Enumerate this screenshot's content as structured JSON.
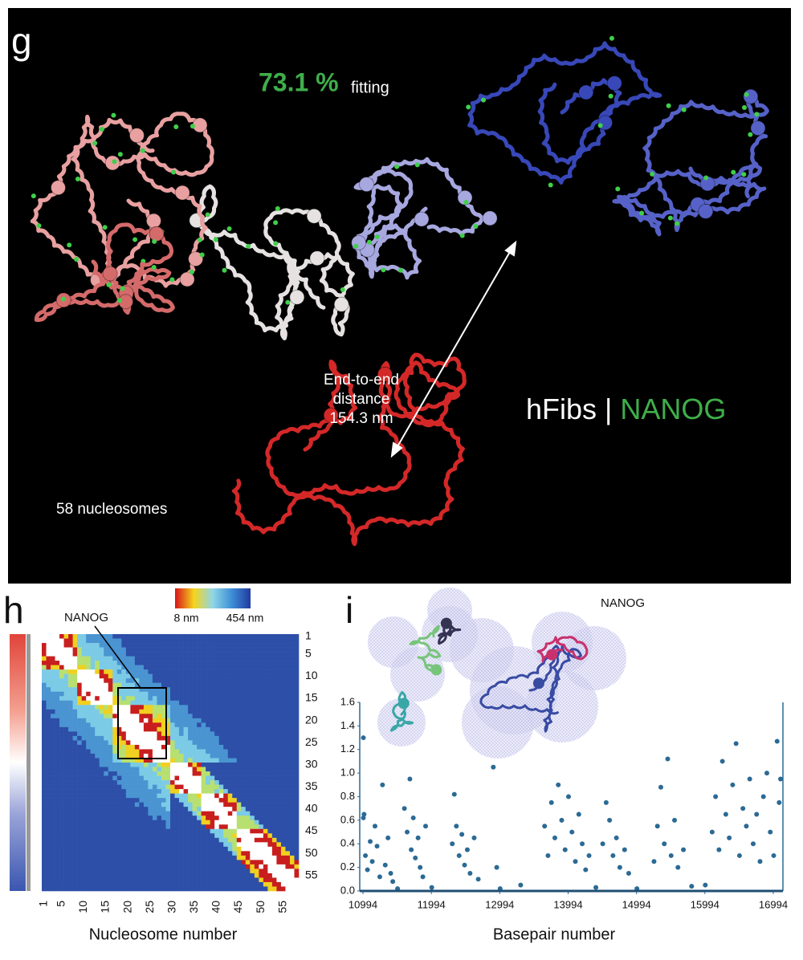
{
  "panels": {
    "g": {
      "label": "g",
      "fitting_value": "73.1 %",
      "fitting_text": "fitting",
      "end_to_end": [
        "End-to-end",
        "distance",
        "154.3 nm"
      ],
      "cell_line": "hFibs",
      "separator": "|",
      "gene": "NANOG",
      "nucleosome_count": "58 nucleosomes"
    },
    "h": {
      "label": "h",
      "annotation": "NANOG",
      "colorbar_min": "8 nm",
      "colorbar_max": "454 nm",
      "ticks": [
        1,
        5,
        10,
        15,
        20,
        25,
        30,
        35,
        40,
        45,
        50,
        55
      ],
      "x_label": "Nucleosome number"
    },
    "i": {
      "label": "i",
      "annotation": "NANOG",
      "chart_data": {
        "type": "scatter",
        "x_label": "Basepair number",
        "color": "#2b6a94",
        "x": [
          11000,
          11000,
          11010,
          11030,
          11060,
          11100,
          11130,
          11170,
          11200,
          11240,
          11280,
          11320,
          11360,
          11400,
          11430,
          11500,
          11600,
          11640,
          11680,
          11700,
          11730,
          11760,
          11800,
          11830,
          11870,
          11910,
          12000,
          12300,
          12330,
          12360,
          12400,
          12440,
          12480,
          12520,
          12560,
          12620,
          12680,
          12900,
          12950,
          13000,
          13300,
          13650,
          13700,
          13750,
          13800,
          13850,
          13900,
          13950,
          14000,
          14050,
          14100,
          14150,
          14200,
          14250,
          14300,
          14400,
          14500,
          14550,
          14600,
          14650,
          14700,
          14750,
          14820,
          14880,
          15000,
          15250,
          15300,
          15350,
          15400,
          15450,
          15500,
          15550,
          15600,
          15680,
          15800,
          16000,
          16100,
          16150,
          16200,
          16250,
          16300,
          16350,
          16400,
          16450,
          16500,
          16550,
          16600,
          16650,
          16700,
          16750,
          16800,
          16850,
          16900,
          16950,
          17000,
          17050,
          17080,
          17100
        ],
        "y": [
          1.3,
          0.62,
          0.65,
          0.3,
          0.18,
          0.42,
          0.25,
          0.55,
          0.38,
          0.12,
          0.9,
          0.22,
          0.45,
          0.15,
          0.08,
          0.02,
          0.7,
          0.5,
          0.95,
          0.35,
          0.62,
          0.28,
          0.45,
          0.2,
          0.12,
          0.55,
          0.03,
          0.4,
          0.82,
          0.55,
          0.3,
          0.48,
          0.22,
          0.35,
          0.15,
          0.45,
          0.1,
          1.05,
          0.2,
          0.02,
          0.05,
          0.55,
          0.3,
          0.75,
          0.45,
          0.9,
          0.6,
          0.35,
          0.8,
          0.5,
          0.25,
          0.65,
          0.4,
          0.18,
          0.3,
          0.03,
          0.4,
          0.75,
          0.6,
          0.3,
          0.45,
          0.2,
          0.35,
          0.15,
          0.02,
          0.25,
          0.55,
          0.88,
          0.4,
          1.12,
          0.3,
          0.6,
          0.2,
          0.35,
          0.04,
          0.05,
          0.5,
          0.8,
          0.35,
          1.1,
          0.65,
          0.45,
          0.9,
          1.25,
          0.3,
          0.7,
          0.55,
          0.95,
          0.4,
          0.65,
          0.25,
          0.8,
          1.0,
          0.5,
          0.3,
          1.27,
          0.75,
          0.95
        ],
        "xlim": [
          10947,
          17135
        ],
        "ylim": [
          0,
          1.6
        ],
        "xticks": [
          10994,
          11994,
          12994,
          13994,
          14994,
          15994,
          16994
        ],
        "yticks": [
          {
            "value": 0,
            "label": "0.0"
          },
          0.2,
          0.4,
          0.6,
          0.8,
          {
            "value": 1,
            "label": "1.0"
          },
          1.2,
          1.4,
          1.6
        ]
      }
    }
  }
}
